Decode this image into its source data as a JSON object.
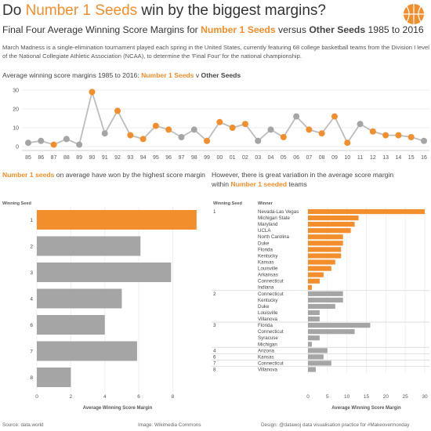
{
  "header": {
    "title_prefix": "Do ",
    "title_highlight": "Number 1 Seeds",
    "title_suffix": " win by the biggest margins?",
    "subtitle_prefix": "Final Four Average Winning Score Margins for ",
    "subtitle_highlight": "Number 1 Seeds",
    "subtitle_mid": " versus ",
    "subtitle_bold": "Other Seeds",
    "subtitle_suffix": " 1985 to 2016",
    "intro": "March Madness is a single-elimination tournament played each spring in the United States, currently featuring 68 college basketball teams from the Division I level of the National Collegiate Athletic Association (NCAA), to determine the 'Final Four' for the national championship."
  },
  "line_section": {
    "heading_prefix": "Average winning score margins 1985 to 2016: ",
    "heading_highlight": "Number 1 Seeds",
    "heading_mid": " v ",
    "heading_bold": "Other Seeds"
  },
  "left_section": {
    "heading_highlight": "Number 1 seeds",
    "heading_rest": " on average have won by the highest score margin",
    "axis_title": "Winning Seed",
    "x_title": "Average Winning Score Margin"
  },
  "right_section": {
    "heading_line1": "However, there is great variation in the average score margin",
    "heading_within": "within ",
    "heading_highlight": "Number 1 seeded",
    "heading_after": " teams",
    "seed_col_title": "Winning Seed",
    "winner_col_title": "Winner",
    "x_title": "Average Winning Score Margin"
  },
  "footer": {
    "source": "Source: data.world",
    "image": "Image: Wikimedia Commons",
    "design": "Design: @datawoj data visualisation practice for #Makeovermonday"
  },
  "colors": {
    "orange": "#F28E2B",
    "grey": "#A5A5A5",
    "line": "#BDBDBD",
    "text": "#333333"
  },
  "icon": "basketball-icon",
  "chart_data": [
    {
      "type": "line",
      "x": [
        "85",
        "86",
        "87",
        "88",
        "89",
        "90",
        "91",
        "92",
        "93",
        "94",
        "95",
        "96",
        "97",
        "98",
        "99",
        "00",
        "01",
        "02",
        "03",
        "04",
        "05",
        "06",
        "07",
        "08",
        "09",
        "10",
        "11",
        "12",
        "13",
        "14",
        "15",
        "16"
      ],
      "values": [
        2,
        3,
        1,
        4,
        1,
        29,
        7,
        19,
        6,
        4,
        11,
        9,
        5,
        9,
        3,
        13,
        10,
        12,
        3,
        9,
        5,
        16,
        9,
        7,
        16,
        2,
        12,
        8,
        6,
        6,
        5,
        3
      ],
      "is_seed1": [
        false,
        false,
        true,
        false,
        false,
        true,
        false,
        true,
        true,
        true,
        true,
        true,
        false,
        false,
        true,
        true,
        true,
        true,
        false,
        false,
        true,
        false,
        true,
        true,
        true,
        true,
        false,
        true,
        true,
        true,
        true,
        false
      ],
      "ylim": [
        0,
        30
      ],
      "y_ticks": [
        0,
        10,
        20,
        30
      ],
      "grid": true
    },
    {
      "type": "bar",
      "categories": [
        "1",
        "2",
        "3",
        "4",
        "6",
        "7",
        "8"
      ],
      "values": [
        9.4,
        6.1,
        7.9,
        5.0,
        4.0,
        5.9,
        2.0
      ],
      "highlight": "1",
      "xlim": [
        0,
        9.5
      ],
      "x_ticks": [
        0,
        2,
        4,
        6,
        8
      ],
      "xlabel": "Average Winning Score Margin",
      "ylabel": "Winning Seed"
    },
    {
      "type": "bar",
      "groups": [
        {
          "seed": "1",
          "rows": [
            {
              "team": "Nevada-Las Vegas",
              "value": 30
            },
            {
              "team": "Michigan State",
              "value": 13
            },
            {
              "team": "Maryland",
              "value": 12
            },
            {
              "team": "UCLA",
              "value": 11
            },
            {
              "team": "North Carolina",
              "value": 9
            },
            {
              "team": "Duke",
              "value": 9
            },
            {
              "team": "Florida",
              "value": 8.5
            },
            {
              "team": "Kentucky",
              "value": 8.5
            },
            {
              "team": "Kansas",
              "value": 7
            },
            {
              "team": "Louisville",
              "value": 6
            },
            {
              "team": "Arkansas",
              "value": 4
            },
            {
              "team": "Connecticut",
              "value": 3
            },
            {
              "team": "Indiana",
              "value": 1
            }
          ]
        },
        {
          "seed": "2",
          "rows": [
            {
              "team": "Connecticut",
              "value": 9
            },
            {
              "team": "Kentucky",
              "value": 9
            },
            {
              "team": "Duke",
              "value": 7
            },
            {
              "team": "Louisville",
              "value": 3
            },
            {
              "team": "Villanova",
              "value": 3
            }
          ]
        },
        {
          "seed": "3",
          "rows": [
            {
              "team": "Florida",
              "value": 16
            },
            {
              "team": "Connecticut",
              "value": 12
            },
            {
              "team": "Syracuse",
              "value": 3
            },
            {
              "team": "Michigan",
              "value": 1
            }
          ]
        },
        {
          "seed": "4",
          "rows": [
            {
              "team": "Arizona",
              "value": 5
            }
          ]
        },
        {
          "seed": "6",
          "rows": [
            {
              "team": "Kansas",
              "value": 4
            }
          ]
        },
        {
          "seed": "7",
          "rows": [
            {
              "team": "Connecticut",
              "value": 6
            }
          ]
        },
        {
          "seed": "8",
          "rows": [
            {
              "team": "Villanova",
              "value": 2
            }
          ]
        }
      ],
      "highlight_seed": "1",
      "xlim": [
        0,
        30
      ],
      "x_ticks": [
        0,
        5,
        10,
        15,
        20,
        25,
        30
      ],
      "xlabel": "Average Winning Score Margin"
    }
  ]
}
